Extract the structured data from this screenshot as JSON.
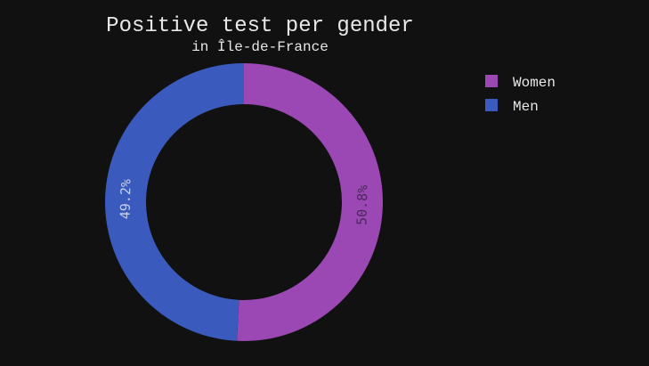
{
  "chart_data": {
    "type": "pie",
    "hole": true,
    "title": "Positive test per gender",
    "subtitle": "in Île-de-France",
    "labels": [
      "Women",
      "Men"
    ],
    "values": [
      50.8,
      49.2
    ],
    "value_labels": [
      "50.8%",
      "49.2%"
    ],
    "colors": [
      "#9b48b4",
      "#3a5bbd"
    ],
    "label_colors": [
      "#4a2a5a",
      "#c9cfe8"
    ],
    "legend_position": "top-right",
    "direction": "clockwise",
    "start": "top"
  },
  "background_color": "#111111"
}
